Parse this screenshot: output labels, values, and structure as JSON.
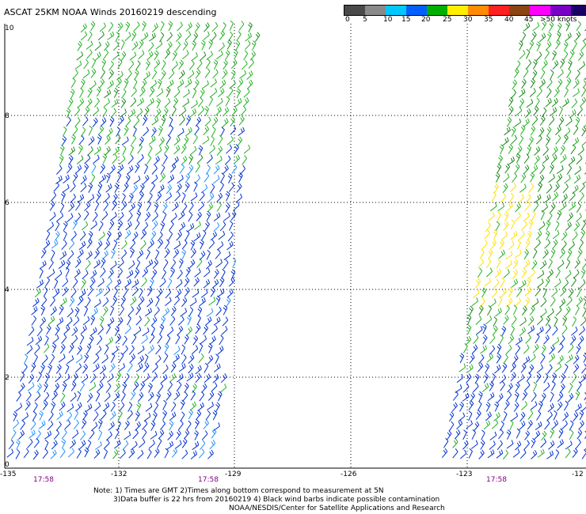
{
  "title": "ASCAT 25KM NOAA Winds 20160219 descending",
  "legend": {
    "labels": [
      "0",
      "5",
      "10",
      "15",
      "20",
      "25",
      "30",
      "35",
      "40",
      "45",
      ">50 knots"
    ],
    "colors": [
      "#4a4a4a",
      "#8a8a8a",
      "#00c8ff",
      "#0060ff",
      "#00b000",
      "#ffee00",
      "#ff8c00",
      "#ff2020",
      "#8b4513",
      "#ff00ff",
      "#7a00c8",
      "#1a0066"
    ]
  },
  "y_ticks": [
    "10",
    "8",
    "6",
    "4",
    "2",
    "0"
  ],
  "x_ticks": [
    "-135",
    "-132",
    "-129",
    "-126",
    "-123",
    "-12"
  ],
  "times": [
    "17:58",
    "17:58",
    "17:58"
  ],
  "notes": {
    "line1": "Note: 1) Times are GMT 2)Times along bottom correspond to measurement at 5N",
    "line2": "3)Data buffer is 22 hrs from 20160219 4) Black wind barbs indicate possible contamination",
    "line3": "NOAA/NESDIS/Center for Satellite Applications and Research"
  }
}
